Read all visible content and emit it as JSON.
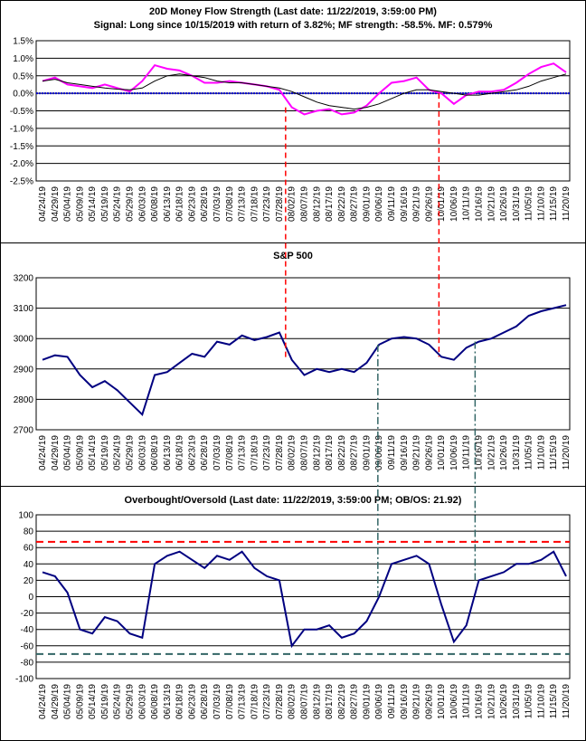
{
  "chart_data": [
    {
      "type": "line",
      "title": "20D Money Flow Strength (Last date: 11/22/2019, 3:59:00 PM)",
      "subtitle": "Signal: Long since 10/15/2019 with return of 3.82%; MF strength: -58.5%. MF: 0.579%",
      "categories": [
        "04/24/19",
        "04/29/19",
        "05/04/19",
        "05/09/19",
        "05/14/19",
        "05/19/19",
        "05/24/19",
        "05/29/19",
        "06/03/19",
        "06/08/19",
        "06/13/19",
        "06/18/19",
        "06/23/19",
        "06/28/19",
        "07/03/19",
        "07/08/19",
        "07/13/19",
        "07/18/19",
        "07/23/19",
        "07/28/19",
        "08/02/19",
        "08/07/19",
        "08/12/19",
        "08/17/19",
        "08/22/19",
        "08/27/19",
        "09/01/19",
        "09/06/19",
        "09/11/19",
        "09/16/19",
        "09/21/19",
        "09/26/19",
        "10/01/19",
        "10/06/19",
        "10/11/19",
        "10/16/19",
        "10/21/19",
        "10/26/19",
        "10/31/19",
        "11/05/19",
        "11/10/19",
        "11/15/19",
        "11/20/19"
      ],
      "series": [
        {
          "color": "#ff00ff",
          "width": 2,
          "values": [
            0.35,
            0.45,
            0.25,
            0.2,
            0.15,
            0.25,
            0.15,
            0.05,
            0.35,
            0.8,
            0.7,
            0.65,
            0.5,
            0.3,
            0.3,
            0.35,
            0.3,
            0.25,
            0.2,
            0.1,
            -0.4,
            -0.6,
            -0.5,
            -0.45,
            -0.6,
            -0.55,
            -0.35,
            0.0,
            0.3,
            0.35,
            0.45,
            0.1,
            0.0,
            -0.3,
            -0.05,
            0.05,
            0.05,
            0.1,
            0.3,
            0.55,
            0.75,
            0.85,
            0.6
          ]
        },
        {
          "color": "#000000",
          "width": 1,
          "values": [
            0.35,
            0.4,
            0.3,
            0.25,
            0.2,
            0.15,
            0.12,
            0.1,
            0.15,
            0.35,
            0.5,
            0.55,
            0.5,
            0.45,
            0.35,
            0.3,
            0.3,
            0.25,
            0.2,
            0.15,
            0.05,
            -0.1,
            -0.25,
            -0.35,
            -0.4,
            -0.45,
            -0.4,
            -0.3,
            -0.15,
            0.0,
            0.1,
            0.1,
            0.05,
            0.0,
            -0.05,
            -0.05,
            0.0,
            0.05,
            0.1,
            0.2,
            0.35,
            0.45,
            0.55
          ]
        }
      ],
      "reference_lines": [
        {
          "value": 0,
          "color": "#0000cc",
          "dash": "2 1"
        }
      ],
      "ylim": [
        -2.5,
        1.5
      ],
      "yticks": [
        {
          "value": -2.5,
          "label": "-2.5%"
        },
        {
          "value": -2,
          "label": "-2.0%"
        },
        {
          "value": -1.5,
          "label": "-1.5%"
        },
        {
          "value": -1,
          "label": "-1.0%"
        },
        {
          "value": -0.5,
          "label": "-0.5%"
        },
        {
          "value": 0,
          "label": "0.0%"
        },
        {
          "value": 0.5,
          "label": "0.5%"
        },
        {
          "value": 1,
          "label": "1.0%"
        },
        {
          "value": 1.5,
          "label": "1.5%"
        }
      ],
      "grid": true
    },
    {
      "type": "line",
      "title": "S&P 500",
      "categories": [
        "04/24/19",
        "04/29/19",
        "05/04/19",
        "05/09/19",
        "05/14/19",
        "05/19/19",
        "05/24/19",
        "05/29/19",
        "06/03/19",
        "06/08/19",
        "06/13/19",
        "06/18/19",
        "06/23/19",
        "06/28/19",
        "07/03/19",
        "07/08/19",
        "07/13/19",
        "07/18/19",
        "07/23/19",
        "07/28/19",
        "08/02/19",
        "08/07/19",
        "08/12/19",
        "08/17/19",
        "08/22/19",
        "08/27/19",
        "09/01/19",
        "09/06/19",
        "09/11/19",
        "09/16/19",
        "09/21/19",
        "09/26/19",
        "10/01/19",
        "10/06/19",
        "10/11/19",
        "10/16/19",
        "10/21/19",
        "10/26/19",
        "10/31/19",
        "11/05/19",
        "11/10/19",
        "11/15/19",
        "11/20/19"
      ],
      "series": [
        {
          "color": "#000080",
          "width": 2,
          "values": [
            2930,
            2945,
            2940,
            2880,
            2840,
            2860,
            2830,
            2790,
            2750,
            2880,
            2890,
            2920,
            2950,
            2940,
            2990,
            2980,
            3010,
            2995,
            3005,
            3020,
            2930,
            2880,
            2900,
            2890,
            2900,
            2890,
            2920,
            2980,
            3000,
            3005,
            3000,
            2980,
            2940,
            2930,
            2970,
            2990,
            3000,
            3020,
            3040,
            3075,
            3090,
            3100,
            3110
          ]
        }
      ],
      "ylim": [
        2700,
        3200
      ],
      "yticks": [
        2700,
        2800,
        2900,
        3000,
        3100,
        3200
      ],
      "grid": true
    },
    {
      "type": "line",
      "title": "Overbought/Oversold (Last date: 11/22/2019, 3:59:00 PM; OB/OS: 21.92)",
      "categories": [
        "04/24/19",
        "04/29/19",
        "05/04/19",
        "05/09/19",
        "05/14/19",
        "05/19/19",
        "05/24/19",
        "05/29/19",
        "06/03/19",
        "06/08/19",
        "06/13/19",
        "06/18/19",
        "06/23/19",
        "06/28/19",
        "07/03/19",
        "07/08/19",
        "07/13/19",
        "07/18/19",
        "07/23/19",
        "07/28/19",
        "08/02/19",
        "08/07/19",
        "08/12/19",
        "08/17/19",
        "08/22/19",
        "08/27/19",
        "09/01/19",
        "09/06/19",
        "09/11/19",
        "09/16/19",
        "09/21/19",
        "09/26/19",
        "10/01/19",
        "10/06/19",
        "10/11/19",
        "10/16/19",
        "10/21/19",
        "10/26/19",
        "10/31/19",
        "11/05/19",
        "11/10/19",
        "11/15/19",
        "11/20/19"
      ],
      "series": [
        {
          "color": "#000080",
          "width": 2,
          "values": [
            30,
            25,
            5,
            -40,
            -45,
            -25,
            -30,
            -45,
            -50,
            40,
            50,
            55,
            45,
            35,
            50,
            45,
            55,
            35,
            25,
            20,
            -60,
            -40,
            -40,
            -35,
            -50,
            -45,
            -30,
            0,
            40,
            45,
            50,
            40,
            -10,
            -55,
            -35,
            20,
            25,
            30,
            40,
            40,
            45,
            55,
            25
          ]
        }
      ],
      "reference_lines": [
        {
          "value": 67,
          "color": "#ff0000",
          "dash": "8 5"
        },
        {
          "value": -70,
          "color": "#336666",
          "dash": "8 5"
        }
      ],
      "ylim": [
        -100,
        100
      ],
      "yticks": [
        -100,
        -80,
        -60,
        -40,
        -20,
        0,
        20,
        40,
        60,
        80,
        100
      ],
      "grid": true
    }
  ]
}
